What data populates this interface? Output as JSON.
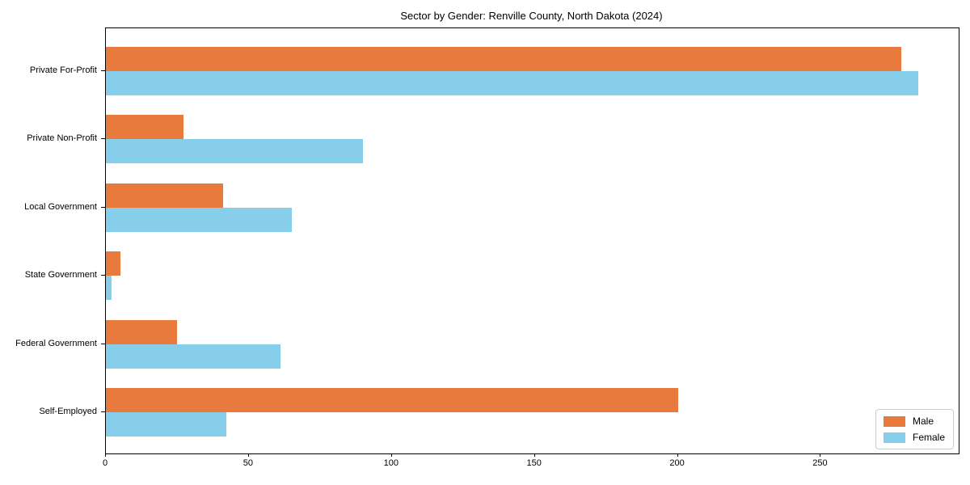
{
  "title": "Sector by Gender: Renville County, North Dakota (2024)",
  "chart_data": {
    "type": "bar",
    "orientation": "horizontal",
    "title": "Sector by Gender: Renville County, North Dakota (2024)",
    "categories": [
      "Private For-Profit",
      "Private Non-Profit",
      "Local Government",
      "State Government",
      "Federal Government",
      "Self-Employed"
    ],
    "series": [
      {
        "name": "Male",
        "color": "#e87a3d",
        "values": [
          278,
          27,
          41,
          5,
          25,
          200
        ]
      },
      {
        "name": "Female",
        "color": "#87ceeb",
        "values": [
          284,
          90,
          65,
          2,
          61,
          42
        ]
      }
    ],
    "xlabel": "",
    "ylabel": "",
    "x_ticks": [
      0,
      50,
      100,
      150,
      200,
      250
    ],
    "xlim": [
      0,
      298.2
    ],
    "grid": false,
    "legend_position": "lower right",
    "background_color": "#ffffff",
    "spine_color": "#000000"
  }
}
